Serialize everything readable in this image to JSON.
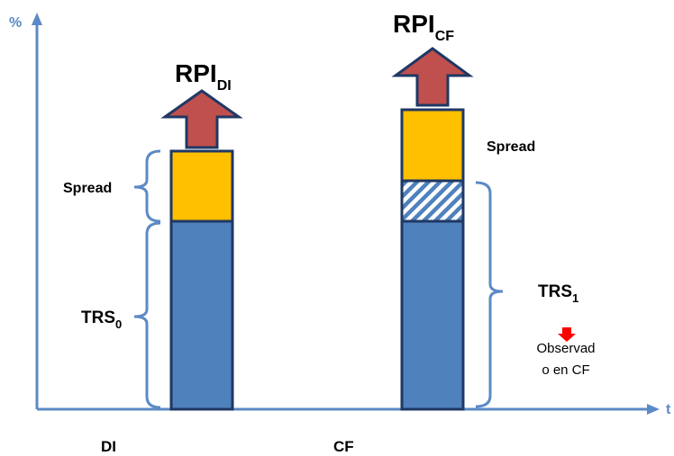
{
  "axis": {
    "y_label": "%",
    "x_end_label": "t"
  },
  "bars": [
    {
      "category": "DI",
      "rpi": {
        "base": "RPI",
        "sub": "DI"
      },
      "spread_label": "Spread",
      "trs": {
        "base": "TRS",
        "sub": "0"
      }
    },
    {
      "category": "CF",
      "rpi": {
        "base": "RPI",
        "sub": "CF"
      },
      "spread_label": "Spread",
      "trs": {
        "base": "TRS",
        "sub": "1"
      },
      "note": [
        "Observad",
        "o en CF"
      ]
    }
  ],
  "colors": {
    "axis": "#5b8ac6",
    "trs_fill": "#4f81bd",
    "spread_fill": "#ffc000",
    "arrow_fill": "#c0504d",
    "arrow_stroke": "#1f3864",
    "bar_stroke": "#1f3864",
    "hatch": "#4f81bd",
    "note_marker": "#ff0000"
  }
}
